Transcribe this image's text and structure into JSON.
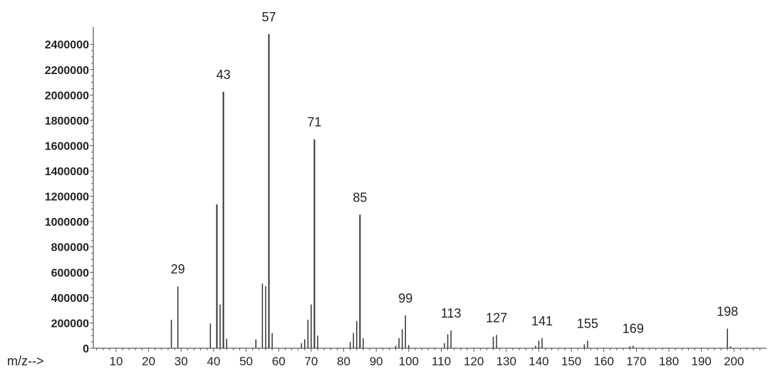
{
  "chart_data": {
    "type": "bar",
    "title": "",
    "xlabel": "m/z-->",
    "ylabel": "",
    "xlim": [
      3,
      210
    ],
    "ylim": [
      0,
      2480000
    ],
    "grid": false,
    "legend": "none",
    "xticks": [
      10,
      20,
      30,
      40,
      50,
      60,
      70,
      80,
      90,
      100,
      110,
      120,
      130,
      140,
      150,
      160,
      170,
      180,
      190,
      200
    ],
    "yticks": [
      0,
      200000,
      400000,
      600000,
      800000,
      1000000,
      1200000,
      1400000,
      1600000,
      1800000,
      2000000,
      2200000,
      2400000
    ],
    "ytick_labels": [
      "0",
      "200000",
      "400000",
      "600000",
      "800000",
      "1000000",
      "1200000",
      "1400000",
      "1600000",
      "1800000",
      "2000000",
      "2200000",
      "2400000"
    ],
    "series": [
      {
        "mz": [
          27,
          29,
          39,
          41,
          42,
          43,
          44,
          53,
          55,
          56,
          57,
          58,
          67,
          68,
          69,
          70,
          71,
          72,
          82,
          83,
          84,
          85,
          86,
          96,
          97,
          98,
          99,
          100,
          111,
          112,
          113,
          126,
          127,
          139,
          140,
          141,
          154,
          155,
          168,
          169,
          198,
          199
        ],
        "values": [
          225000,
          488000,
          195000,
          1135000,
          345000,
          2025000,
          75000,
          70000,
          510000,
          490000,
          2480000,
          120000,
          40000,
          70000,
          225000,
          345000,
          1650000,
          100000,
          50000,
          120000,
          215000,
          1055000,
          80000,
          20000,
          80000,
          150000,
          260000,
          25000,
          40000,
          110000,
          140000,
          90000,
          105000,
          20000,
          60000,
          80000,
          30000,
          60000,
          15000,
          20000,
          155000,
          15000
        ]
      }
    ],
    "peak_labels": [
      {
        "mz": 29,
        "text": "29"
      },
      {
        "mz": 43,
        "text": "43"
      },
      {
        "mz": 57,
        "text": "57"
      },
      {
        "mz": 71,
        "text": "71"
      },
      {
        "mz": 85,
        "text": "85"
      },
      {
        "mz": 99,
        "text": "99"
      },
      {
        "mz": 113,
        "text": "113"
      },
      {
        "mz": 127,
        "text": "127"
      },
      {
        "mz": 141,
        "text": "141"
      },
      {
        "mz": 155,
        "text": "155"
      },
      {
        "mz": 169,
        "text": "169"
      },
      {
        "mz": 198,
        "text": "198"
      }
    ],
    "colors": {
      "axis": "#333333",
      "peak": "#333333",
      "text": "#222222",
      "background": "#ffffff"
    }
  }
}
